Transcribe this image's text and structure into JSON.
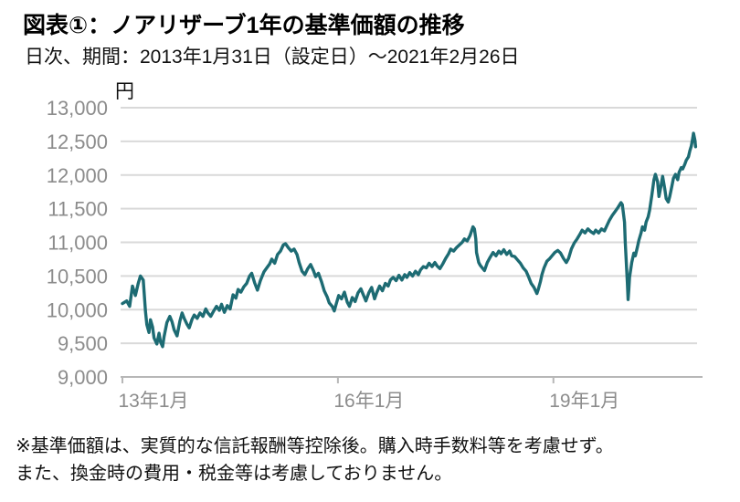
{
  "header": {
    "title": "図表①：ノアリザーブ1年の基準価額の推移",
    "subtitle": "日次、期間：2013年1月31日（設定日）～2021年2月26日"
  },
  "footnote": {
    "line1": "※基準価額は、実質的な信託報酬等控除後。購入時手数料等を考慮せず。",
    "line2": "また、換金時の費用・税金等は考慮しておりません。"
  },
  "colors": {
    "series": "#1d6b73",
    "gridline": "#d9d9d9",
    "axis": "#b7b7b7",
    "tick_label": "#8c8c8c",
    "text": "#111111"
  },
  "chart_data": {
    "type": "line",
    "title": "ノアリザーブ1年の基準価額の推移",
    "unit_label": "円",
    "grid": true,
    "legend": "none",
    "ylim": [
      9000,
      13000
    ],
    "xlim": [
      0,
      8.0
    ],
    "y_ticks": [
      {
        "value": 9000,
        "label": "9,000"
      },
      {
        "value": 9500,
        "label": "9,500"
      },
      {
        "value": 10000,
        "label": "10,000"
      },
      {
        "value": 10500,
        "label": "10,500"
      },
      {
        "value": 11000,
        "label": "11,000"
      },
      {
        "value": 11500,
        "label": "11,500"
      },
      {
        "value": 12000,
        "label": "12,000"
      },
      {
        "value": 12500,
        "label": "12,500"
      },
      {
        "value": 13000,
        "label": "13,000"
      }
    ],
    "x_ticks": [
      {
        "t": 0,
        "label": "13年1月"
      },
      {
        "t": 3,
        "label": "16年1月"
      },
      {
        "t": 6,
        "label": "19年1月"
      }
    ],
    "series": [
      {
        "name": "基準価額",
        "color": "#1d6b73",
        "points": [
          [
            0.0,
            10090
          ],
          [
            0.06,
            10130
          ],
          [
            0.1,
            10050
          ],
          [
            0.14,
            10350
          ],
          [
            0.18,
            10210
          ],
          [
            0.22,
            10390
          ],
          [
            0.25,
            10500
          ],
          [
            0.29,
            10440
          ],
          [
            0.32,
            9980
          ],
          [
            0.34,
            9780
          ],
          [
            0.37,
            9660
          ],
          [
            0.39,
            9850
          ],
          [
            0.42,
            9740
          ],
          [
            0.44,
            9580
          ],
          [
            0.48,
            9490
          ],
          [
            0.51,
            9650
          ],
          [
            0.53,
            9520
          ],
          [
            0.56,
            9450
          ],
          [
            0.58,
            9600
          ],
          [
            0.62,
            9810
          ],
          [
            0.66,
            9900
          ],
          [
            0.69,
            9820
          ],
          [
            0.72,
            9700
          ],
          [
            0.76,
            9610
          ],
          [
            0.8,
            9830
          ],
          [
            0.83,
            9950
          ],
          [
            0.86,
            9870
          ],
          [
            0.9,
            9780
          ],
          [
            0.93,
            9730
          ],
          [
            0.97,
            9860
          ],
          [
            1.0,
            9920
          ],
          [
            1.04,
            9870
          ],
          [
            1.08,
            9950
          ],
          [
            1.12,
            9900
          ],
          [
            1.16,
            10010
          ],
          [
            1.19,
            9950
          ],
          [
            1.23,
            9900
          ],
          [
            1.27,
            9980
          ],
          [
            1.31,
            10050
          ],
          [
            1.35,
            9990
          ],
          [
            1.38,
            10080
          ],
          [
            1.42,
            9960
          ],
          [
            1.46,
            10060
          ],
          [
            1.5,
            10010
          ],
          [
            1.54,
            10220
          ],
          [
            1.58,
            10170
          ],
          [
            1.61,
            10300
          ],
          [
            1.65,
            10260
          ],
          [
            1.69,
            10340
          ],
          [
            1.73,
            10390
          ],
          [
            1.77,
            10500
          ],
          [
            1.8,
            10540
          ],
          [
            1.84,
            10400
          ],
          [
            1.88,
            10290
          ],
          [
            1.92,
            10430
          ],
          [
            1.97,
            10560
          ],
          [
            2.01,
            10620
          ],
          [
            2.05,
            10680
          ],
          [
            2.08,
            10750
          ],
          [
            2.12,
            10690
          ],
          [
            2.16,
            10820
          ],
          [
            2.2,
            10870
          ],
          [
            2.24,
            10960
          ],
          [
            2.27,
            10980
          ],
          [
            2.31,
            10920
          ],
          [
            2.35,
            10870
          ],
          [
            2.39,
            10900
          ],
          [
            2.43,
            10820
          ],
          [
            2.46,
            10700
          ],
          [
            2.5,
            10570
          ],
          [
            2.54,
            10520
          ],
          [
            2.58,
            10610
          ],
          [
            2.62,
            10670
          ],
          [
            2.66,
            10580
          ],
          [
            2.69,
            10490
          ],
          [
            2.73,
            10540
          ],
          [
            2.77,
            10420
          ],
          [
            2.81,
            10280
          ],
          [
            2.85,
            10190
          ],
          [
            2.88,
            10100
          ],
          [
            2.92,
            10050
          ],
          [
            2.95,
            9980
          ],
          [
            2.97,
            10060
          ],
          [
            3.01,
            10210
          ],
          [
            3.05,
            10160
          ],
          [
            3.09,
            10260
          ],
          [
            3.13,
            10110
          ],
          [
            3.16,
            10050
          ],
          [
            3.2,
            10180
          ],
          [
            3.24,
            10120
          ],
          [
            3.28,
            10250
          ],
          [
            3.32,
            10310
          ],
          [
            3.35,
            10230
          ],
          [
            3.39,
            10130
          ],
          [
            3.43,
            10250
          ],
          [
            3.47,
            10330
          ],
          [
            3.51,
            10160
          ],
          [
            3.54,
            10250
          ],
          [
            3.58,
            10350
          ],
          [
            3.62,
            10280
          ],
          [
            3.66,
            10390
          ],
          [
            3.7,
            10350
          ],
          [
            3.73,
            10440
          ],
          [
            3.77,
            10480
          ],
          [
            3.81,
            10430
          ],
          [
            3.85,
            10510
          ],
          [
            3.89,
            10440
          ],
          [
            3.93,
            10520
          ],
          [
            3.96,
            10480
          ],
          [
            4.0,
            10550
          ],
          [
            4.04,
            10500
          ],
          [
            4.08,
            10570
          ],
          [
            4.12,
            10520
          ],
          [
            4.15,
            10590
          ],
          [
            4.19,
            10640
          ],
          [
            4.23,
            10620
          ],
          [
            4.27,
            10690
          ],
          [
            4.31,
            10640
          ],
          [
            4.35,
            10700
          ],
          [
            4.38,
            10650
          ],
          [
            4.42,
            10610
          ],
          [
            4.46,
            10680
          ],
          [
            4.5,
            10760
          ],
          [
            4.54,
            10830
          ],
          [
            4.57,
            10900
          ],
          [
            4.61,
            10870
          ],
          [
            4.65,
            10920
          ],
          [
            4.69,
            10960
          ],
          [
            4.73,
            11000
          ],
          [
            4.76,
            11050
          ],
          [
            4.8,
            11020
          ],
          [
            4.84,
            11100
          ],
          [
            4.88,
            11230
          ],
          [
            4.9,
            11200
          ],
          [
            4.92,
            11050
          ],
          [
            4.93,
            10850
          ],
          [
            4.96,
            10700
          ],
          [
            4.98,
            10660
          ],
          [
            5.01,
            10620
          ],
          [
            5.04,
            10580
          ],
          [
            5.08,
            10700
          ],
          [
            5.12,
            10780
          ],
          [
            5.16,
            10850
          ],
          [
            5.2,
            10800
          ],
          [
            5.24,
            10870
          ],
          [
            5.27,
            10830
          ],
          [
            5.31,
            10890
          ],
          [
            5.35,
            10820
          ],
          [
            5.39,
            10870
          ],
          [
            5.42,
            10800
          ],
          [
            5.46,
            10790
          ],
          [
            5.5,
            10740
          ],
          [
            5.54,
            10690
          ],
          [
            5.58,
            10620
          ],
          [
            5.62,
            10570
          ],
          [
            5.65,
            10500
          ],
          [
            5.69,
            10390
          ],
          [
            5.73,
            10330
          ],
          [
            5.77,
            10240
          ],
          [
            5.79,
            10300
          ],
          [
            5.82,
            10420
          ],
          [
            5.84,
            10520
          ],
          [
            5.87,
            10620
          ],
          [
            5.91,
            10720
          ],
          [
            5.95,
            10760
          ],
          [
            5.98,
            10800
          ],
          [
            6.02,
            10850
          ],
          [
            6.06,
            10880
          ],
          [
            6.1,
            10840
          ],
          [
            6.14,
            10760
          ],
          [
            6.18,
            10700
          ],
          [
            6.21,
            10760
          ],
          [
            6.25,
            10900
          ],
          [
            6.29,
            10990
          ],
          [
            6.33,
            11050
          ],
          [
            6.37,
            11120
          ],
          [
            6.4,
            11180
          ],
          [
            6.44,
            11140
          ],
          [
            6.48,
            11200
          ],
          [
            6.52,
            11160
          ],
          [
            6.56,
            11130
          ],
          [
            6.59,
            11180
          ],
          [
            6.63,
            11140
          ],
          [
            6.67,
            11200
          ],
          [
            6.71,
            11170
          ],
          [
            6.75,
            11260
          ],
          [
            6.78,
            11330
          ],
          [
            6.82,
            11400
          ],
          [
            6.86,
            11460
          ],
          [
            6.9,
            11520
          ],
          [
            6.94,
            11590
          ],
          [
            6.96,
            11560
          ],
          [
            6.99,
            11300
          ],
          [
            7.0,
            11000
          ],
          [
            7.03,
            10400
          ],
          [
            7.04,
            10150
          ],
          [
            7.05,
            10300
          ],
          [
            7.06,
            10480
          ],
          [
            7.09,
            10700
          ],
          [
            7.12,
            10840
          ],
          [
            7.14,
            10800
          ],
          [
            7.17,
            10930
          ],
          [
            7.19,
            11030
          ],
          [
            7.22,
            11140
          ],
          [
            7.24,
            11230
          ],
          [
            7.27,
            11180
          ],
          [
            7.29,
            11300
          ],
          [
            7.32,
            11380
          ],
          [
            7.34,
            11480
          ],
          [
            7.37,
            11700
          ],
          [
            7.4,
            11930
          ],
          [
            7.42,
            12010
          ],
          [
            7.45,
            11900
          ],
          [
            7.47,
            11680
          ],
          [
            7.5,
            11850
          ],
          [
            7.52,
            11980
          ],
          [
            7.55,
            11800
          ],
          [
            7.57,
            11650
          ],
          [
            7.6,
            11600
          ],
          [
            7.62,
            11680
          ],
          [
            7.65,
            11840
          ],
          [
            7.67,
            11950
          ],
          [
            7.7,
            12010
          ],
          [
            7.73,
            11930
          ],
          [
            7.75,
            12040
          ],
          [
            7.78,
            12110
          ],
          [
            7.8,
            12090
          ],
          [
            7.83,
            12160
          ],
          [
            7.85,
            12220
          ],
          [
            7.88,
            12270
          ],
          [
            7.9,
            12360
          ],
          [
            7.92,
            12430
          ],
          [
            7.94,
            12550
          ],
          [
            7.95,
            12620
          ],
          [
            7.97,
            12520
          ],
          [
            7.98,
            12420
          ]
        ]
      }
    ]
  }
}
